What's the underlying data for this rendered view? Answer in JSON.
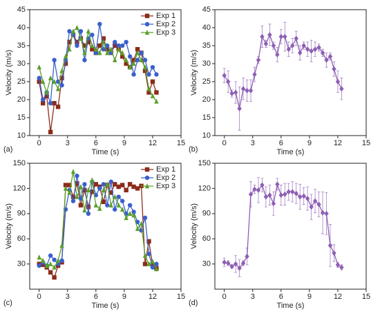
{
  "chart_data": [
    {
      "type": "line",
      "label": "(a)",
      "x_label": "Time (s)",
      "y_label": "Velocity (m/s)",
      "xlim": [
        -1,
        15
      ],
      "xticks": [
        0,
        3,
        6,
        9,
        12,
        15
      ],
      "ylim": [
        10,
        45
      ],
      "yticks": [
        10,
        15,
        20,
        25,
        30,
        35,
        40,
        45
      ],
      "legend": "upper right",
      "x": [
        0,
        0.4,
        0.8,
        1.2,
        1.6,
        2.0,
        2.4,
        2.8,
        3.2,
        3.6,
        4.0,
        4.4,
        4.8,
        5.2,
        5.6,
        6.0,
        6.4,
        6.8,
        7.2,
        7.6,
        8.0,
        8.4,
        8.8,
        9.2,
        9.6,
        10.0,
        10.4,
        10.8,
        11.2,
        11.6,
        12.0,
        12.4
      ],
      "series": [
        {
          "name": "Exp 1",
          "color": "#8b2c1a",
          "marker": "square",
          "values": [
            25,
            19,
            21,
            11,
            19,
            18,
            26,
            30,
            36,
            38,
            36,
            37,
            35,
            36,
            34,
            33,
            35,
            37,
            34,
            33,
            35,
            34,
            32,
            30,
            29,
            31,
            34,
            33,
            28,
            22,
            25,
            22
          ]
        },
        {
          "name": "Exp 2",
          "color": "#3a5fcd",
          "marker": "circle",
          "values": [
            26,
            20,
            22,
            19,
            31,
            25,
            24,
            31,
            39,
            38,
            35,
            39,
            31,
            37,
            38,
            33,
            41,
            34,
            35,
            33,
            36,
            35,
            35,
            36,
            32,
            27,
            31,
            33,
            31,
            27,
            29,
            27
          ]
        },
        {
          "name": "Exp 3",
          "color": "#5aa02c",
          "marker": "triangle",
          "values": [
            29,
            25,
            22,
            26,
            25,
            23,
            28,
            32,
            34,
            39,
            40,
            37,
            33,
            39,
            35,
            34,
            33,
            36,
            33,
            34,
            31,
            34,
            33,
            31,
            29,
            30,
            33,
            31,
            29,
            23,
            21,
            19.5
          ]
        }
      ]
    },
    {
      "type": "line",
      "label": "(b)",
      "x_label": "Time (s)",
      "y_label": "Velocity (m/s)",
      "xlim": [
        -1,
        15
      ],
      "xticks": [
        0,
        3,
        6,
        9,
        12,
        15
      ],
      "ylim": [
        10,
        45
      ],
      "yticks": [
        10,
        15,
        20,
        25,
        30,
        35,
        40,
        45
      ],
      "x": [
        0,
        0.4,
        0.8,
        1.2,
        1.6,
        2.0,
        2.4,
        2.8,
        3.2,
        3.6,
        4.0,
        4.4,
        4.8,
        5.2,
        5.6,
        6.0,
        6.4,
        6.8,
        7.2,
        7.6,
        8.0,
        8.4,
        8.8,
        9.2,
        9.6,
        10.0,
        10.4,
        10.8,
        11.2,
        11.6,
        12.0,
        12.4
      ],
      "series": [
        {
          "color": "#8e5fb5",
          "marker": "diamond",
          "values": [
            26.7,
            25,
            21.7,
            22,
            17.5,
            23,
            22.5,
            22.5,
            27,
            31,
            37.5,
            35.5,
            38,
            35,
            32.5,
            37.5,
            37.5,
            34,
            35,
            37,
            33,
            35,
            34,
            33.5,
            34,
            34.5,
            33,
            31,
            32,
            28.5,
            25,
            23
          ],
          "errors": [
            2,
            3,
            1,
            3,
            6,
            3,
            3,
            3,
            2,
            1,
            3,
            1,
            3,
            1,
            2,
            2,
            4,
            2,
            2,
            2,
            2,
            1,
            2,
            3,
            2,
            1,
            1,
            2,
            1,
            2,
            3,
            3
          ]
        }
      ]
    },
    {
      "type": "line",
      "label": "(c)",
      "x_label": "Time (s)",
      "y_label": "Velocity (m/s)",
      "xlim": [
        -1,
        15
      ],
      "xticks": [
        0,
        3,
        6,
        9,
        12,
        15
      ],
      "ylim": [
        0,
        150
      ],
      "yticks": [
        30,
        60,
        90,
        120,
        150
      ],
      "legend": "upper right",
      "x": [
        0,
        0.4,
        0.8,
        1.2,
        1.6,
        2.0,
        2.4,
        2.8,
        3.2,
        3.6,
        4.0,
        4.4,
        4.8,
        5.2,
        5.6,
        6.0,
        6.4,
        6.8,
        7.2,
        7.6,
        8.0,
        8.4,
        8.8,
        9.2,
        9.6,
        10.0,
        10.4,
        10.8,
        11.2,
        11.6,
        12.0,
        12.4
      ],
      "series": [
        {
          "name": "Exp 1",
          "color": "#8b2c1a",
          "marker": "square",
          "values": [
            30,
            29,
            26,
            20,
            14,
            28,
            32,
            124,
            124,
            110,
            126,
            100,
            118,
            98,
            116,
            125,
            122,
            104,
            124,
            115,
            125,
            122,
            124,
            118,
            125,
            122,
            120,
            123,
            30,
            57,
            28,
            25
          ]
        },
        {
          "name": "Exp 2",
          "color": "#3a5fcd",
          "marker": "circle",
          "values": [
            28,
            32,
            28,
            40,
            35,
            30,
            34,
            95,
            118,
            105,
            135,
            108,
            125,
            90,
            128,
            112,
            120,
            125,
            100,
            128,
            95,
            110,
            105,
            90,
            100,
            92,
            80,
            70,
            85,
            42,
            26,
            30
          ]
        },
        {
          "name": "Exp 3",
          "color": "#5aa02c",
          "marker": "triangle",
          "values": [
            38,
            34,
            28,
            30,
            26,
            34,
            52,
            120,
            115,
            140,
            110,
            122,
            94,
            118,
            130,
            100,
            96,
            118,
            125,
            100,
            110,
            100,
            95,
            85,
            90,
            88,
            72,
            78,
            40,
            30,
            33,
            24
          ]
        }
      ]
    },
    {
      "type": "line",
      "label": "(d)",
      "x_label": "Time (s)",
      "y_label": "Velocity (m/s)",
      "xlim": [
        -1,
        15
      ],
      "xticks": [
        0,
        3,
        6,
        9,
        12,
        15
      ],
      "ylim": [
        0,
        150
      ],
      "yticks": [
        30,
        60,
        90,
        120,
        150
      ],
      "x": [
        0,
        0.4,
        0.8,
        1.2,
        1.6,
        2.0,
        2.4,
        2.8,
        3.2,
        3.6,
        4.0,
        4.4,
        4.8,
        5.2,
        5.6,
        6.0,
        6.4,
        6.8,
        7.2,
        7.6,
        8.0,
        8.4,
        8.8,
        9.2,
        9.6,
        10.0,
        10.4,
        10.8,
        11.2,
        11.6,
        12.0,
        12.4
      ],
      "series": [
        {
          "color": "#8e5fb5",
          "marker": "diamond",
          "values": [
            32,
            31,
            27,
            30,
            25,
            31,
            39,
            113,
            119,
            118,
            124,
            110,
            112,
            102,
            125,
            112,
            113,
            116,
            116,
            114,
            110,
            111,
            108,
            98,
            105,
            101,
            91,
            90,
            52,
            43,
            29,
            26
          ],
          "errors": [
            5,
            3,
            2,
            10,
            10,
            3,
            10,
            15,
            5,
            15,
            8,
            12,
            12,
            14,
            7,
            12,
            13,
            10,
            12,
            12,
            15,
            10,
            14,
            15,
            14,
            15,
            25,
            25,
            25,
            10,
            3,
            3
          ]
        }
      ]
    }
  ]
}
